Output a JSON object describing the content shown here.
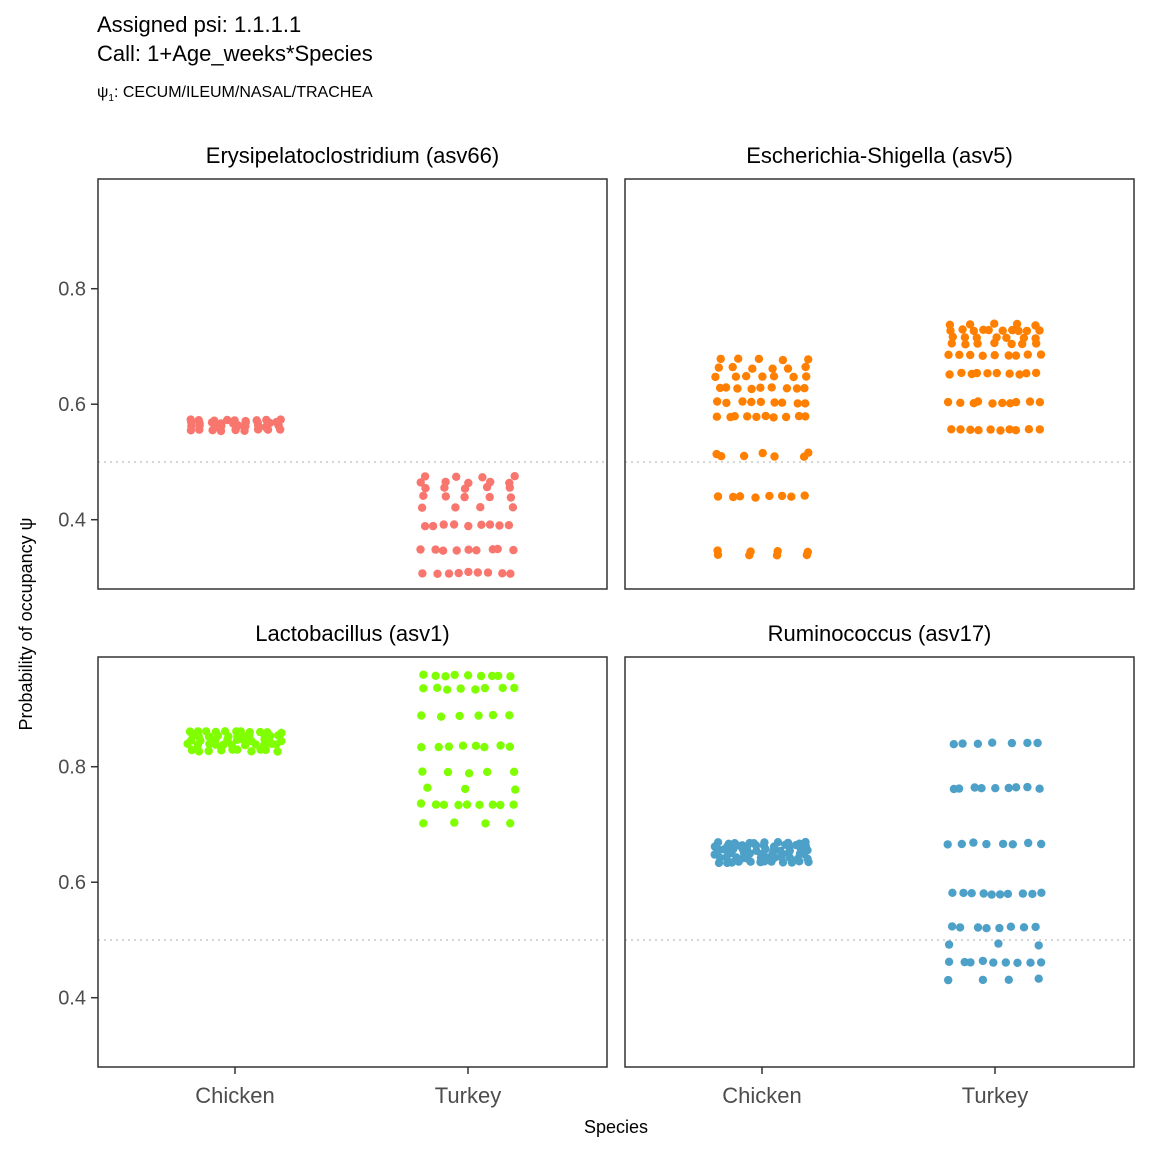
{
  "header": {
    "line1": "Assigned psi: 1.1.1.1",
    "line2": "Call: 1+Age_weeks*Species",
    "psi_symbol": "ψ",
    "psi_subscript": "1",
    "psi_text": ": CECUM/ILEUM/NASAL/TRACHEA"
  },
  "chart_data": {
    "type": "scatter",
    "xlabel": "Species",
    "ylabel": "Probability of occupancy ψ",
    "categories": [
      "Chicken",
      "Turkey"
    ],
    "ylim": [
      0.28,
      0.99
    ],
    "yticks": [
      0.4,
      0.6,
      0.8
    ],
    "yticklabels": [
      "0.4",
      "0.6",
      "0.8"
    ],
    "reference_line": 0.5,
    "grid": false,
    "panels": [
      {
        "title": "Erysipelatoclostridium (asv66)",
        "color": "#F8766D",
        "series": [
          {
            "category": "Chicken",
            "levels": [
              0.555,
              0.562,
              0.568,
              0.572
            ],
            "counts": [
              9,
              9,
              9,
              9
            ]
          },
          {
            "category": "Turkey",
            "levels": [
              0.308,
              0.348,
              0.39,
              0.42,
              0.44,
              0.455,
              0.465,
              0.475
            ],
            "counts": [
              9,
              9,
              9,
              4,
              5,
              5,
              5,
              4
            ]
          }
        ]
      },
      {
        "title": "Escherichia-Shigella (asv5)",
        "color": "#FF7F00",
        "series": [
          {
            "category": "Chicken",
            "levels": [
              0.34,
              0.345,
              0.44,
              0.51,
              0.515,
              0.578,
              0.603,
              0.628,
              0.648,
              0.663,
              0.678
            ],
            "counts": [
              4,
              4,
              8,
              4,
              3,
              10,
              9,
              9,
              7,
              6,
              5
            ]
          },
          {
            "category": "Turkey",
            "levels": [
              0.555,
              0.603,
              0.653,
              0.685,
              0.705,
              0.715,
              0.728,
              0.738
            ],
            "counts": [
              10,
              10,
              10,
              9,
              7,
              7,
              10,
              5
            ]
          }
        ]
      },
      {
        "title": "Lactobacillus (asv1)",
        "color": "#7FFF00",
        "series": [
          {
            "category": "Chicken",
            "levels": [
              0.828,
              0.838,
              0.846,
              0.853,
              0.86
            ],
            "counts": [
              10,
              11,
              11,
              11,
              11
            ]
          },
          {
            "category": "Turkey",
            "levels": [
              0.702,
              0.735,
              0.762,
              0.79,
              0.835,
              0.888,
              0.935,
              0.958
            ],
            "counts": [
              4,
              9,
              3,
              5,
              8,
              6,
              8,
              9
            ]
          }
        ]
      },
      {
        "title": "Ruminococcus (asv17)",
        "color": "#4DA0C8",
        "series": [
          {
            "category": "Chicken",
            "levels": [
              0.635,
              0.642,
              0.649,
              0.656,
              0.663,
              0.668
            ],
            "counts": [
              12,
              12,
              12,
              12,
              12,
              10
            ]
          },
          {
            "category": "Turkey",
            "levels": [
              0.432,
              0.462,
              0.492,
              0.522,
              0.58,
              0.667,
              0.763,
              0.84
            ],
            "counts": [
              4,
              9,
              3,
              8,
              10,
              8,
              9,
              7
            ]
          }
        ]
      }
    ]
  }
}
